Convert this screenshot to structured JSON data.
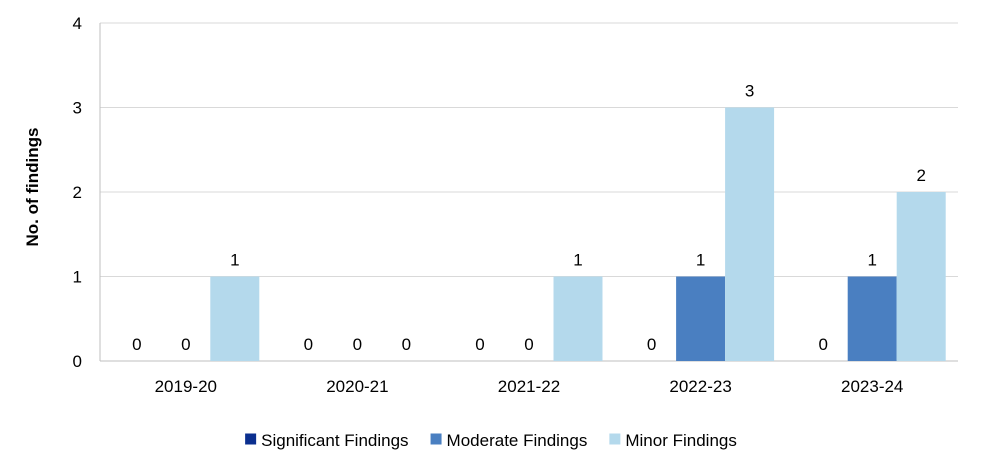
{
  "chart_data": {
    "type": "bar",
    "title": "",
    "xlabel": "",
    "ylabel": "No. of findings",
    "ylim": [
      0,
      4
    ],
    "yticks": [
      "0",
      "1",
      "2",
      "3",
      "4"
    ],
    "grid": true,
    "legend_position": "bottom",
    "categories": [
      "2019-20",
      "2020-21",
      "2021-22",
      "2022-23",
      "2023-24"
    ],
    "series": [
      {
        "name": "Significant Findings",
        "color": "#0b2f8f",
        "values": [
          0,
          0,
          0,
          0,
          0
        ],
        "labels": [
          "0",
          "0",
          "0",
          "0",
          "0"
        ]
      },
      {
        "name": "Moderate Findings",
        "color": "#4a7fc1",
        "values": [
          0,
          0,
          0,
          1,
          1
        ],
        "labels": [
          "0",
          "0",
          "0",
          "1",
          "1"
        ]
      },
      {
        "name": "Minor Findings",
        "color": "#b4d9ec",
        "values": [
          1,
          0,
          1,
          3,
          2
        ],
        "labels": [
          "1",
          "0",
          "1",
          "3",
          "2"
        ]
      }
    ]
  }
}
